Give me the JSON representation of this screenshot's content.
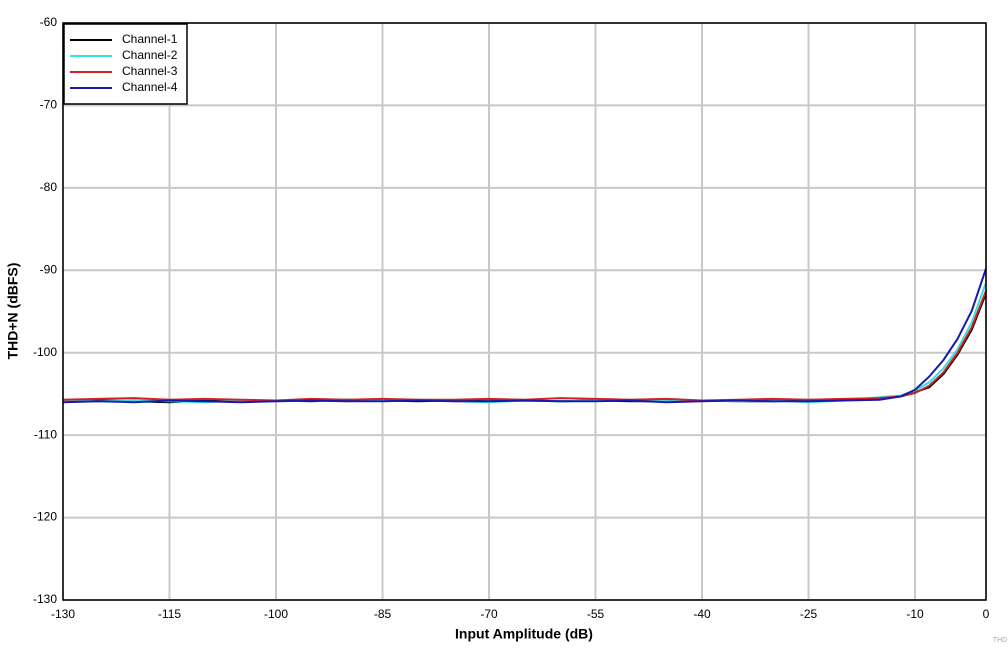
{
  "chart_data": {
    "type": "line",
    "xlabel": "Input Amplitude (dB)",
    "ylabel": "THD+N (dBFS)",
    "note": "THD",
    "x": [
      -130,
      -125,
      -120,
      -115,
      -110,
      -105,
      -100,
      -95,
      -90,
      -85,
      -80,
      -75,
      -70,
      -65,
      -60,
      -55,
      -50,
      -45,
      -40,
      -35,
      -30,
      -25,
      -20,
      -15,
      -12,
      -10,
      -8,
      -6,
      -4,
      -2,
      0
    ],
    "series": [
      {
        "name": "Channel-1",
        "color": "#000000",
        "values": [
          -105.9,
          -105.8,
          -105.9,
          -106.0,
          -105.8,
          -105.9,
          -105.8,
          -105.9,
          -105.7,
          -105.8,
          -105.9,
          -105.8,
          -105.9,
          -105.8,
          -105.9,
          -105.8,
          -105.9,
          -105.9,
          -105.8,
          -105.9,
          -105.9,
          -105.8,
          -105.7,
          -105.6,
          -105.3,
          -104.8,
          -104.2,
          -102.6,
          -100.2,
          -97.2,
          -92.8
        ]
      },
      {
        "name": "Channel-2",
        "color": "#33e0e8",
        "values": [
          -105.8,
          -105.9,
          -105.8,
          -105.9,
          -106.0,
          -105.8,
          -105.9,
          -105.8,
          -105.9,
          -105.8,
          -105.7,
          -105.9,
          -106.0,
          -105.8,
          -105.9,
          -105.8,
          -105.8,
          -105.9,
          -105.8,
          -105.9,
          -105.8,
          -106.0,
          -105.8,
          -105.4,
          -105.2,
          -104.6,
          -103.6,
          -101.9,
          -99.6,
          -96.3,
          -91.5
        ]
      },
      {
        "name": "Channel-3",
        "color": "#d42020",
        "values": [
          -105.7,
          -105.6,
          -105.5,
          -105.7,
          -105.6,
          -105.7,
          -105.8,
          -105.6,
          -105.7,
          -105.6,
          -105.7,
          -105.7,
          -105.6,
          -105.7,
          -105.5,
          -105.6,
          -105.7,
          -105.6,
          -105.8,
          -105.7,
          -105.6,
          -105.7,
          -105.6,
          -105.5,
          -105.3,
          -104.9,
          -104.0,
          -102.4,
          -100.0,
          -96.9,
          -92.5
        ]
      },
      {
        "name": "Channel-4",
        "color": "#1a1aa8",
        "values": [
          -106.0,
          -105.9,
          -106.0,
          -105.8,
          -105.9,
          -106.0,
          -105.9,
          -105.8,
          -105.9,
          -105.9,
          -105.8,
          -105.9,
          -105.9,
          -105.8,
          -105.9,
          -105.9,
          -105.8,
          -106.0,
          -105.9,
          -105.8,
          -105.9,
          -105.9,
          -105.8,
          -105.7,
          -105.3,
          -104.5,
          -102.9,
          -100.9,
          -98.3,
          -94.9,
          -89.8
        ]
      }
    ],
    "xlim": [
      -130,
      0
    ],
    "xticks": [
      -130,
      -115,
      -100,
      -85,
      -70,
      -55,
      -40,
      -25,
      -10,
      0
    ],
    "ylim": [
      -130,
      -60
    ],
    "yticks": [
      -130,
      -120,
      -110,
      -100,
      -90,
      -80,
      -70,
      -60
    ],
    "grid": true,
    "legend": "upper left"
  }
}
